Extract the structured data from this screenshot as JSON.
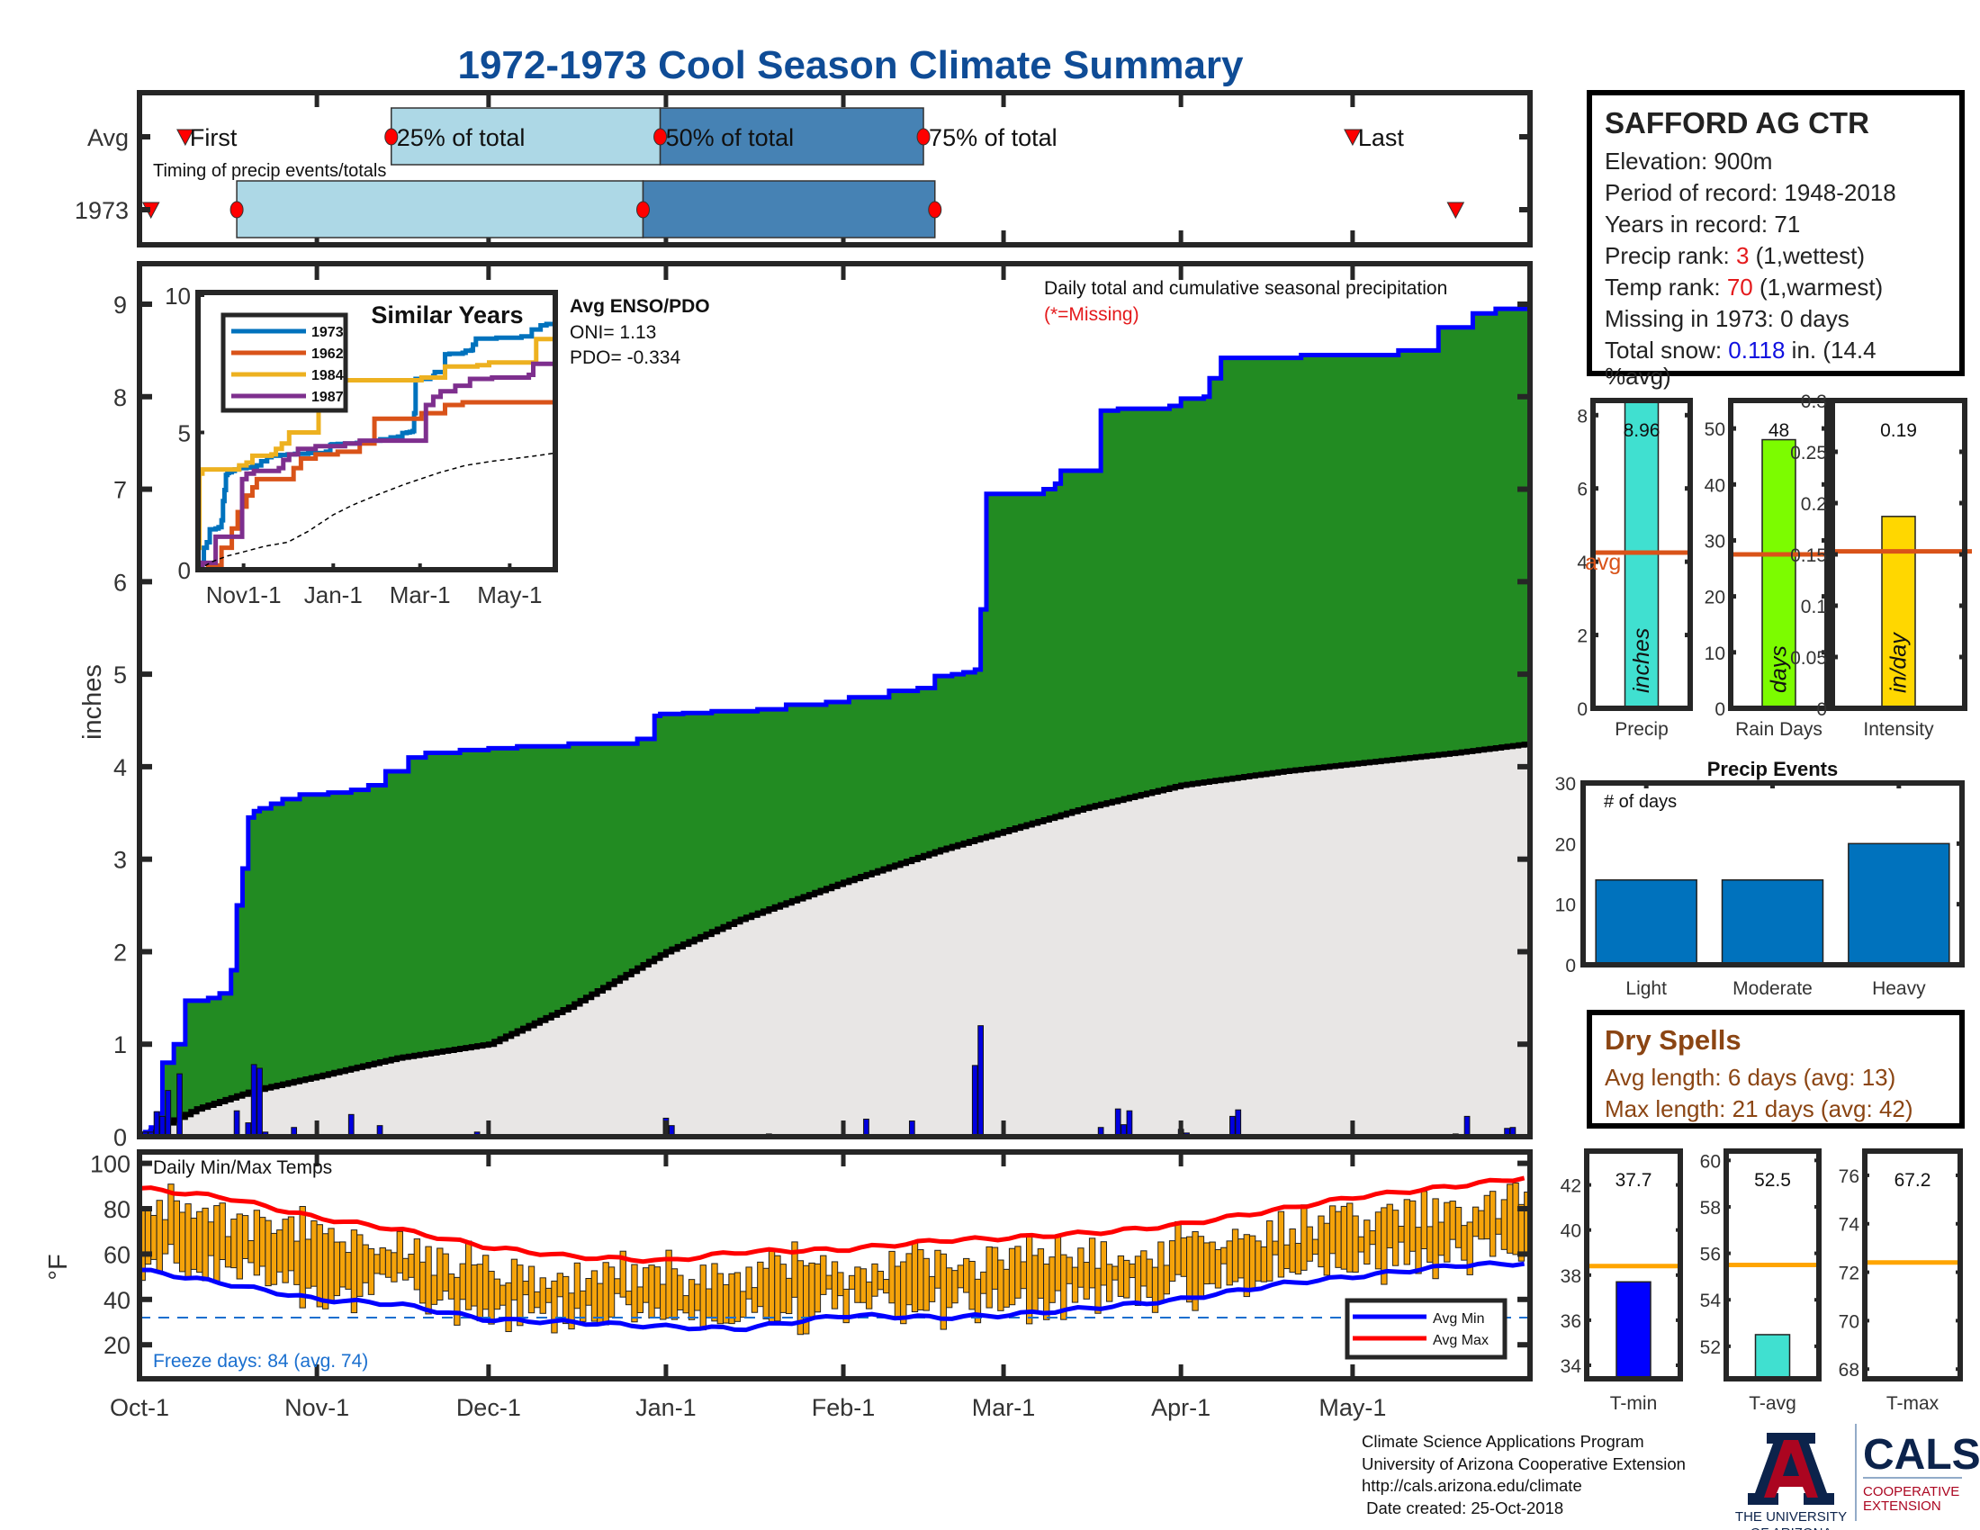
{
  "title": "1972-1973 Cool Season Climate Summary",
  "station": {
    "name": "SAFFORD AG CTR",
    "elevation_label": "Elevation: 900m",
    "period_label": "Period of record: 1948-2018",
    "years_label": "Years in record: 71",
    "precip_rank_prefix": "Precip rank: ",
    "precip_rank": "3",
    "precip_rank_suffix": " (1,wettest)",
    "temp_rank_prefix": "Temp rank: ",
    "temp_rank": "70",
    "temp_rank_suffix": " (1,warmest)",
    "missing_label": "Missing in 1973: 0 days",
    "snow_prefix": "Total snow: ",
    "snow_value": "0.118",
    "snow_suffix": " in. (14.4",
    "snow_suffix2": "%avg)"
  },
  "dry_spells": {
    "title": "Dry Spells",
    "avg_label": "Avg length: 6 days (avg: 13)",
    "max_label": "Max length: 21 days (avg: 42)"
  },
  "footer": {
    "lines": [
      "Climate Science Applications Program",
      "University of Arizona Cooperative Extension",
      "http://cals.arizona.edu/climate",
      " Date created: 25-Oct-2018"
    ],
    "ua_logo_text": [
      "THE UNIVERSITY",
      "OF ARIZONA"
    ],
    "cals_logo_text": "CALS",
    "cals_sub": [
      "COOPERATIVE",
      "EXTENSION"
    ]
  },
  "colors": {
    "title": "#0f4c96",
    "green_fill": "#228b22",
    "cum_line": "#0000ff",
    "avg_fill": "#e8e6e5",
    "bar_light": "#add8e6",
    "bar_dark": "#4682b4",
    "marker_red": "#ff0000",
    "avg_line_orange": "#d95319",
    "temp_bar": "#f5a30a",
    "avg_max": "#ff0000",
    "avg_min": "#0000ff",
    "freeze_line": "#1a6fcf",
    "dry_spells": "#8b4513"
  },
  "chart_data": [
    {
      "id": "timing",
      "type": "bar",
      "title": "Timing of precip events/totals",
      "rows": [
        "Avg",
        "1973"
      ],
      "x_axis": "date (Oct-1 to May-31)",
      "series": [
        {
          "name": "Avg",
          "first_day": "Oct-9",
          "p25": "Nov-14",
          "p50": "Dec-31",
          "p75": "Feb-15",
          "last": "May-1",
          "labels": {
            "first": "First",
            "p25": "25% of total",
            "p50": "50% of total",
            "p75": "75% of total",
            "last": "Last"
          }
        },
        {
          "name": "1973",
          "first_day": "Oct-3",
          "p25": "Oct-18",
          "p50": "Dec-28",
          "p75": "Feb-17",
          "last": "May-19"
        }
      ]
    },
    {
      "id": "precip",
      "type": "area",
      "title": "Daily total and cumulative seasonal precipitation",
      "subtitle": "(*=Missing)",
      "ylabel": "inches",
      "ylim": [
        0,
        9.4
      ],
      "yticks": [
        0,
        1,
        2,
        3,
        4,
        5,
        6,
        7,
        8,
        9
      ],
      "xticks": [
        "Oct-1",
        "Nov-1",
        "Dec-1",
        "Jan-1",
        "Feb-1",
        "Mar-1",
        "Apr-1",
        "May-1"
      ],
      "xtick_days": [
        0,
        31,
        61,
        92,
        123,
        151,
        182,
        212
      ],
      "n_days": 243,
      "cumulative_1973_steps": [
        [
          0,
          0.0
        ],
        [
          1,
          0.05
        ],
        [
          2,
          0.1
        ],
        [
          3,
          0.25
        ],
        [
          4,
          0.8
        ],
        [
          5,
          0.8
        ],
        [
          6,
          1.0
        ],
        [
          8,
          1.47
        ],
        [
          12,
          1.5
        ],
        [
          14,
          1.55
        ],
        [
          16,
          1.8
        ],
        [
          17,
          2.5
        ],
        [
          18,
          2.9
        ],
        [
          19,
          3.45
        ],
        [
          20,
          3.52
        ],
        [
          21,
          3.55
        ],
        [
          23,
          3.6
        ],
        [
          25,
          3.65
        ],
        [
          28,
          3.7
        ],
        [
          33,
          3.72
        ],
        [
          37,
          3.75
        ],
        [
          40,
          3.8
        ],
        [
          43,
          3.95
        ],
        [
          47,
          4.1
        ],
        [
          50,
          4.15
        ],
        [
          56,
          4.18
        ],
        [
          61,
          4.2
        ],
        [
          66,
          4.22
        ],
        [
          75,
          4.25
        ],
        [
          87,
          4.3
        ],
        [
          90,
          4.55
        ],
        [
          91,
          4.57
        ],
        [
          95,
          4.58
        ],
        [
          100,
          4.6
        ],
        [
          108,
          4.62
        ],
        [
          113,
          4.67
        ],
        [
          120,
          4.7
        ],
        [
          124,
          4.75
        ],
        [
          131,
          4.82
        ],
        [
          136,
          4.85
        ],
        [
          139,
          4.98
        ],
        [
          142,
          5.0
        ],
        [
          144,
          5.02
        ],
        [
          146,
          5.05
        ],
        [
          147,
          5.7
        ],
        [
          148,
          6.95
        ],
        [
          158,
          7.0
        ],
        [
          160,
          7.06
        ],
        [
          161,
          7.2
        ],
        [
          168,
          7.85
        ],
        [
          171,
          7.87
        ],
        [
          178,
          7.87
        ],
        [
          180,
          7.9
        ],
        [
          182,
          7.98
        ],
        [
          186,
          8.0
        ],
        [
          187,
          8.2
        ],
        [
          189,
          8.42
        ],
        [
          203,
          8.45
        ],
        [
          220,
          8.5
        ],
        [
          227,
          8.75
        ],
        [
          231,
          8.75
        ],
        [
          233,
          8.9
        ],
        [
          237,
          8.95
        ],
        [
          243,
          8.96
        ]
      ],
      "avg_cumulative_end": 4.25,
      "avg_cumulative_points": [
        [
          0,
          0
        ],
        [
          10,
          0.3
        ],
        [
          20,
          0.5
        ],
        [
          31,
          0.65
        ],
        [
          45,
          0.85
        ],
        [
          61,
          1.0
        ],
        [
          75,
          1.4
        ],
        [
          92,
          2.0
        ],
        [
          105,
          2.35
        ],
        [
          123,
          2.75
        ],
        [
          140,
          3.1
        ],
        [
          151,
          3.3
        ],
        [
          165,
          3.55
        ],
        [
          182,
          3.8
        ],
        [
          200,
          3.95
        ],
        [
          212,
          4.03
        ],
        [
          230,
          4.15
        ],
        [
          243,
          4.25
        ]
      ],
      "daily_1973": [
        [
          1,
          0.05
        ],
        [
          2,
          0.05
        ],
        [
          3,
          0.27
        ],
        [
          4,
          0.22
        ],
        [
          5,
          0.5
        ],
        [
          7,
          0.68
        ],
        [
          11,
          0.01
        ],
        [
          17,
          0.28
        ],
        [
          19,
          0.15
        ],
        [
          20,
          0.78
        ],
        [
          21,
          0.74
        ],
        [
          22,
          0.05
        ],
        [
          27,
          0.1
        ],
        [
          34,
          0.01
        ],
        [
          37,
          0.24
        ],
        [
          42,
          0.12
        ],
        [
          59,
          0.05
        ],
        [
          92,
          0.2
        ],
        [
          93,
          0.12
        ],
        [
          110,
          0.03
        ],
        [
          127,
          0.19
        ],
        [
          135,
          0.17
        ],
        [
          140,
          0.01
        ],
        [
          146,
          0.77
        ],
        [
          147,
          1.2
        ],
        [
          165,
          0.01
        ],
        [
          168,
          0.1
        ],
        [
          171,
          0.3
        ],
        [
          172,
          0.13
        ],
        [
          173,
          0.28
        ],
        [
          182,
          0.08
        ],
        [
          183,
          0.04
        ],
        [
          187,
          0.01
        ],
        [
          191,
          0.22
        ],
        [
          192,
          0.29
        ],
        [
          230,
          0.03
        ],
        [
          232,
          0.22
        ],
        [
          239,
          0.09
        ],
        [
          240,
          0.1
        ]
      ]
    },
    {
      "id": "similar_years",
      "type": "line",
      "title": "Similar Years",
      "ylim": [
        0,
        10
      ],
      "yticks": [
        0,
        5,
        10
      ],
      "xticks": [
        "Nov1-1",
        "Jan-1",
        "Mar-1",
        "May-1"
      ],
      "series": [
        {
          "name": "1973",
          "color": "#0072bd",
          "end": 8.96
        },
        {
          "name": "1962",
          "color": "#d95319",
          "end": 5.9
        },
        {
          "name": "1984",
          "color": "#edb120",
          "end": 8.5
        },
        {
          "name": "1987",
          "color": "#7e2f8e",
          "end": 7.6
        }
      ],
      "annotation": {
        "title": "Avg ENSO/PDO",
        "oni": "ONI= 1.13",
        "pdo": "PDO= -0.334"
      }
    },
    {
      "id": "precip_bars",
      "type": "bar",
      "panels": [
        {
          "category": "Precip",
          "value": 8.96,
          "label": "8.96",
          "avg": 4.25,
          "ylim": [
            0,
            8.4
          ],
          "yticks": [
            0,
            2,
            4,
            6,
            8
          ],
          "unit": "inches",
          "color": "#40e0d0"
        },
        {
          "category": "Rain Days",
          "value": 48,
          "label": "48",
          "avg": 27.5,
          "ylim": [
            0,
            55
          ],
          "yticks": [
            0,
            10,
            20,
            30,
            40,
            50
          ],
          "unit": "days",
          "color": "#7cfc00"
        },
        {
          "category": "Intensity",
          "value": 0.187,
          "label": "0.19",
          "avg": 0.153,
          "ylim": [
            0,
            0.3
          ],
          "yticks": [
            0,
            0.05,
            0.1,
            0.15,
            0.2,
            0.25,
            0.3
          ],
          "unit": "in/day",
          "color": "#ffd700"
        }
      ],
      "avg_label": "avg"
    },
    {
      "id": "precip_events",
      "type": "bar",
      "title": "Precip Events",
      "annotation": "# of days",
      "categories": [
        "Light",
        "Moderate",
        "Heavy"
      ],
      "values": [
        14,
        14,
        20
      ],
      "ylim": [
        0,
        30
      ],
      "yticks": [
        0,
        10,
        20,
        30
      ]
    },
    {
      "id": "temps",
      "type": "bar",
      "title": "Daily Min/Max Temps",
      "ylabel": "°F",
      "ylim": [
        5,
        105
      ],
      "yticks": [
        20,
        40,
        60,
        80,
        100
      ],
      "xticks": [
        "Oct-1",
        "Nov-1",
        "Dec-1",
        "Jan-1",
        "Feb-1",
        "Mar-1",
        "Apr-1",
        "May-1"
      ],
      "legend": [
        "Avg Min",
        "Avg Max"
      ],
      "legend_position": "bottom-right",
      "freeze_line": 32,
      "freeze_label": "Freeze days: 84 (avg. 74)",
      "avg_max_points": [
        [
          0,
          89
        ],
        [
          15,
          85
        ],
        [
          31,
          76
        ],
        [
          45,
          71
        ],
        [
          61,
          63
        ],
        [
          75,
          59
        ],
        [
          92,
          57
        ],
        [
          105,
          61
        ],
        [
          123,
          62
        ],
        [
          140,
          66
        ],
        [
          151,
          67
        ],
        [
          170,
          70
        ],
        [
          182,
          73
        ],
        [
          200,
          80
        ],
        [
          212,
          85
        ],
        [
          230,
          90
        ],
        [
          243,
          94
        ]
      ],
      "avg_min_points": [
        [
          0,
          53
        ],
        [
          15,
          47
        ],
        [
          31,
          40
        ],
        [
          45,
          38
        ],
        [
          61,
          31
        ],
        [
          75,
          30
        ],
        [
          92,
          28
        ],
        [
          105,
          27
        ],
        [
          123,
          33
        ],
        [
          140,
          32
        ],
        [
          151,
          33
        ],
        [
          170,
          37
        ],
        [
          182,
          40
        ],
        [
          200,
          47
        ],
        [
          212,
          50
        ],
        [
          230,
          55
        ],
        [
          243,
          56
        ]
      ]
    },
    {
      "id": "temp_summary",
      "type": "bar",
      "panels": [
        {
          "category": "T-min",
          "value": 37.7,
          "label": "37.7",
          "avg": 38.4,
          "ylim": [
            33.4,
            43.5
          ],
          "yticks": [
            34,
            36,
            38,
            40,
            42
          ],
          "color": "#0000ff"
        },
        {
          "category": "T-avg",
          "value": 52.5,
          "label": "52.5",
          "avg": 55.5,
          "ylim": [
            50.6,
            60.4
          ],
          "yticks": [
            52,
            54,
            56,
            58,
            60
          ],
          "color": "#40e0d0"
        },
        {
          "category": "T-max",
          "value": 67.2,
          "label": "67.2",
          "avg": 72.4,
          "ylim": [
            67.6,
            77
          ],
          "yticks": [
            68,
            70,
            72,
            74,
            76
          ],
          "color": "#f5a30a"
        }
      ],
      "avg_line_color": "#ffa500"
    }
  ]
}
